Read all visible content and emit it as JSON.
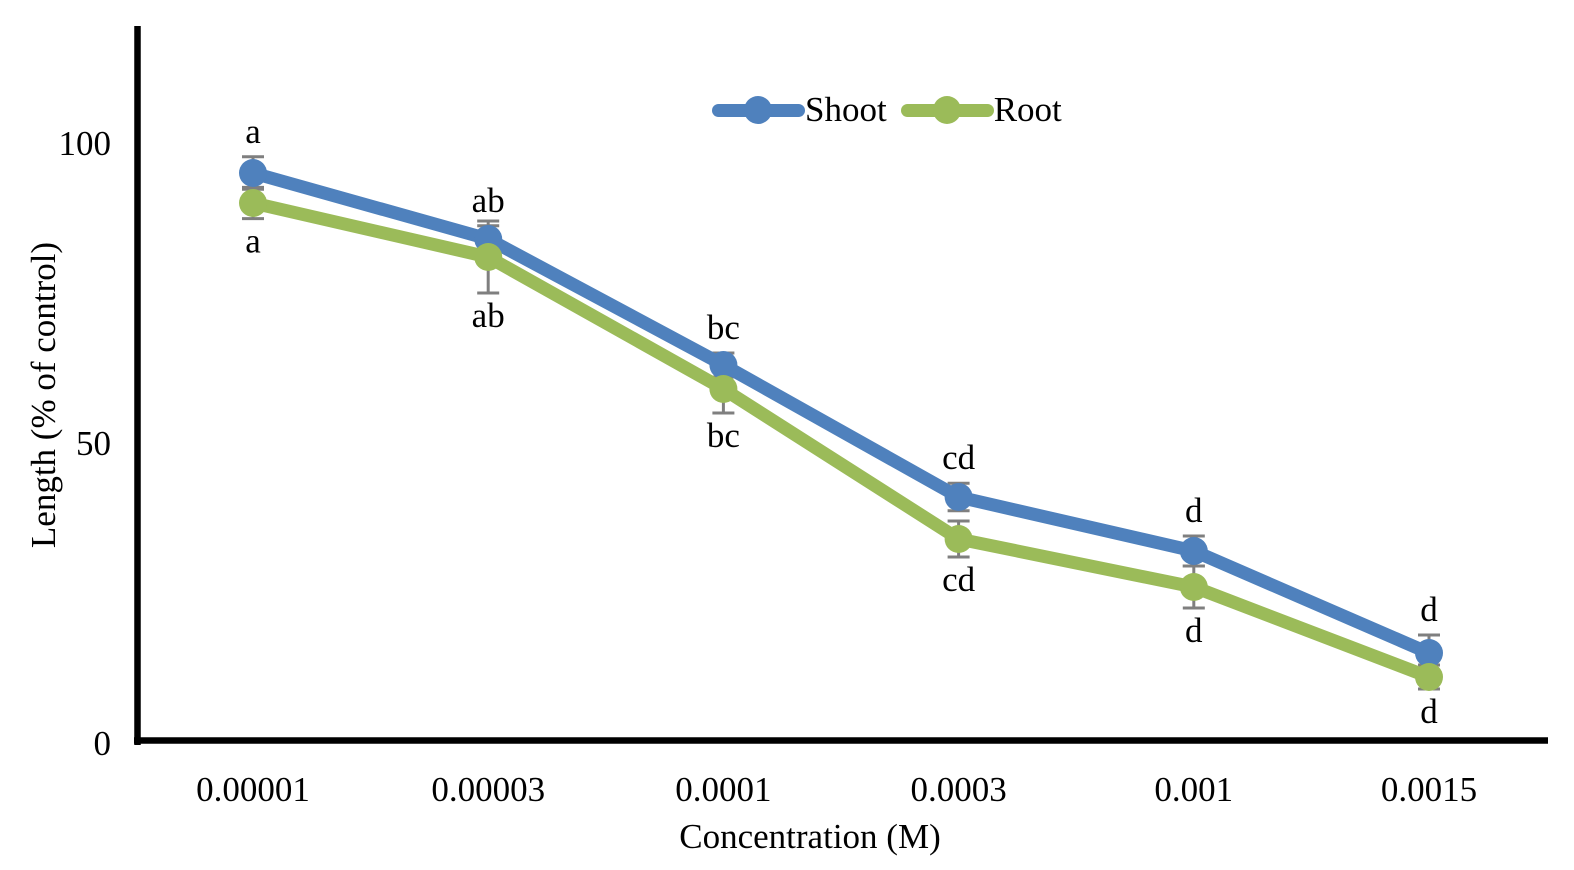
{
  "figure": {
    "background": "#ffffff"
  },
  "chart_data": {
    "type": "line",
    "title": "",
    "xlabel": "Concentration (M)",
    "ylabel": "Length (% of control)",
    "categories": [
      "0.00001",
      "0.00003",
      "0.0001",
      "0.0003",
      "0.001",
      "0.0015"
    ],
    "x_axis_type": "categorical",
    "yticks": [
      0,
      50,
      100
    ],
    "ylim": [
      0,
      120
    ],
    "grid": false,
    "legend_position": "top-center",
    "axis_color": "#000000",
    "error_bar_color": "#7f7f7f",
    "marker_style": "circle",
    "series": [
      {
        "name": "Shoot",
        "color": "#4f81bd",
        "values": [
          95,
          84,
          63,
          41,
          32,
          15
        ],
        "errors": [
          2.7,
          2.2,
          2,
          2.3,
          2.5,
          3
        ],
        "point_labels": [
          "a",
          "ab",
          "bc",
          "cd",
          "d",
          "d"
        ],
        "label_side": "above"
      },
      {
        "name": "Root",
        "color": "#9bbb59",
        "values": [
          90,
          81,
          59,
          34,
          26,
          11
        ],
        "errors": [
          2.6,
          6,
          4,
          3,
          3.5,
          2
        ],
        "point_labels": [
          "a",
          "ab",
          "bc",
          "cd",
          "d",
          "d"
        ],
        "label_side": "below"
      }
    ]
  }
}
